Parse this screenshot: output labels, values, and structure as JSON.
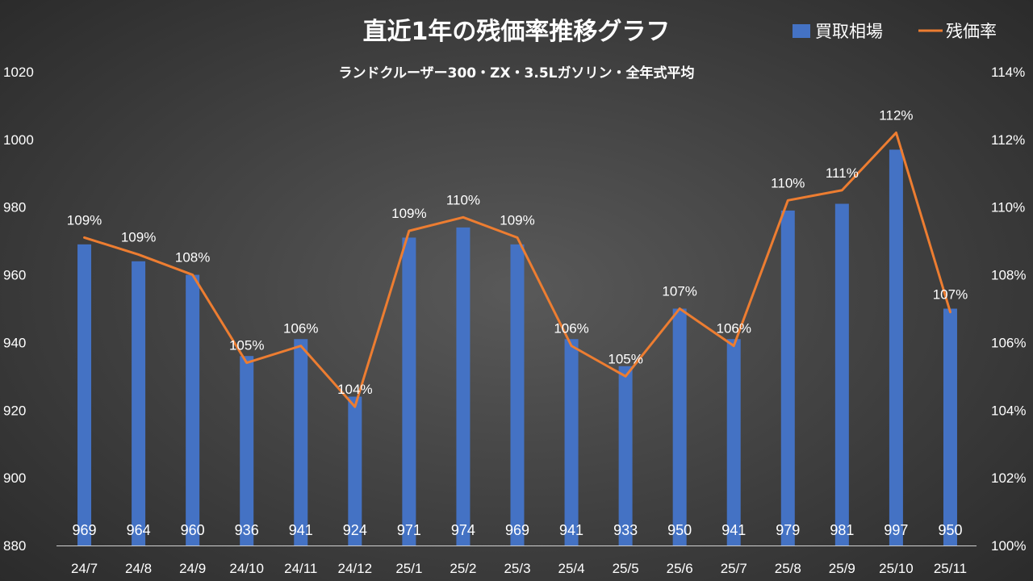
{
  "chart_data": {
    "type": "bar+line",
    "title": "直近1年の残価率推移グラフ",
    "subtitle": "ランドクルーザー300・ZX・3.5Lガソリン・全年式平均",
    "categories": [
      "24/7",
      "24/8",
      "24/9",
      "24/10",
      "24/11",
      "24/12",
      "25/1",
      "25/2",
      "25/3",
      "25/4",
      "25/5",
      "25/6",
      "25/7",
      "25/8",
      "25/9",
      "25/10",
      "25/11"
    ],
    "series": [
      {
        "name": "買取相場",
        "type": "bar",
        "axis": "left",
        "color": "#4472c4",
        "values": [
          969,
          964,
          960,
          936,
          941,
          924,
          971,
          974,
          969,
          941,
          933,
          950,
          941,
          979,
          981,
          997,
          950
        ]
      },
      {
        "name": "残価率",
        "type": "line",
        "axis": "right",
        "color": "#ed7d31",
        "values": [
          109.1,
          108.6,
          108.0,
          105.4,
          105.9,
          104.1,
          109.3,
          109.7,
          109.1,
          105.9,
          105.0,
          107.0,
          105.9,
          110.2,
          110.5,
          112.2,
          106.9
        ],
        "labels": [
          "109%",
          "109%",
          "108%",
          "105%",
          "106%",
          "104%",
          "109%",
          "110%",
          "109%",
          "106%",
          "105%",
          "107%",
          "106%",
          "110%",
          "111%",
          "112%",
          "107%"
        ]
      }
    ],
    "y_left": {
      "min": 880,
      "max": 1020,
      "ticks": [
        "880",
        "900",
        "920",
        "940",
        "960",
        "980",
        "1000",
        "1020"
      ]
    },
    "y_right": {
      "min": 100,
      "max": 114,
      "ticks": [
        "100%",
        "102%",
        "104%",
        "106%",
        "108%",
        "110%",
        "112%",
        "114%"
      ]
    },
    "legend_position": "top-right",
    "grid": false
  }
}
